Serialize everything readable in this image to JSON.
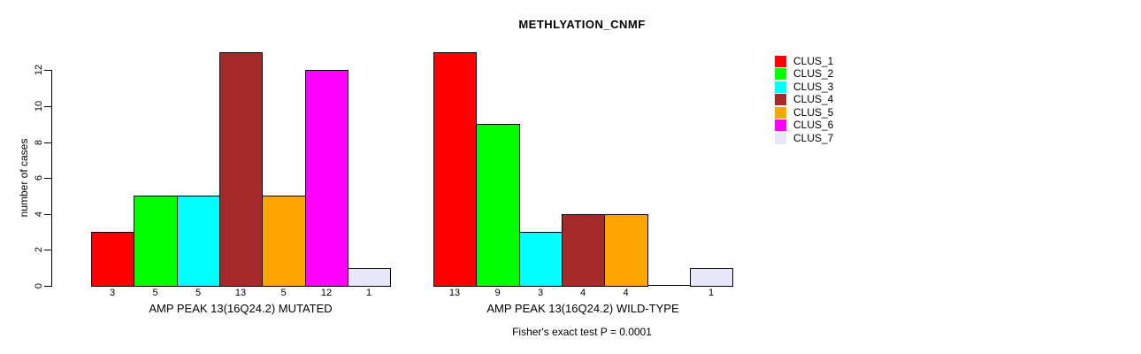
{
  "title": "METHLYATION_CNMF",
  "footer": "Fisher's exact test P = 0.0001",
  "colors": {
    "bar_border": "#000000",
    "background": "#ffffff"
  },
  "chart_data": {
    "type": "bar",
    "title": "METHLYATION_CNMF",
    "xlabel": "",
    "ylabel": "number of cases",
    "ylim": [
      0,
      13
    ],
    "yticks": [
      0,
      2,
      4,
      6,
      8,
      10,
      12
    ],
    "grid": false,
    "legend_position": "right",
    "categories": [
      "CLUS_1",
      "CLUS_2",
      "CLUS_3",
      "CLUS_4",
      "CLUS_5",
      "CLUS_6",
      "CLUS_7"
    ],
    "colors": [
      "#FF0000",
      "#00FF00",
      "#00FFFF",
      "#A52A2A",
      "#FFA500",
      "#FF00FF",
      "#E6E6FA"
    ],
    "groups": [
      {
        "label": "AMP PEAK 13(16Q24.2) MUTATED",
        "values": [
          3,
          5,
          5,
          13,
          5,
          12,
          1
        ]
      },
      {
        "label": "AMP PEAK 13(16Q24.2) WILD-TYPE",
        "values": [
          13,
          9,
          3,
          4,
          4,
          0,
          1
        ]
      }
    ],
    "bar_value_labels": true,
    "annotation": "Fisher's exact test P = 0.0001"
  }
}
